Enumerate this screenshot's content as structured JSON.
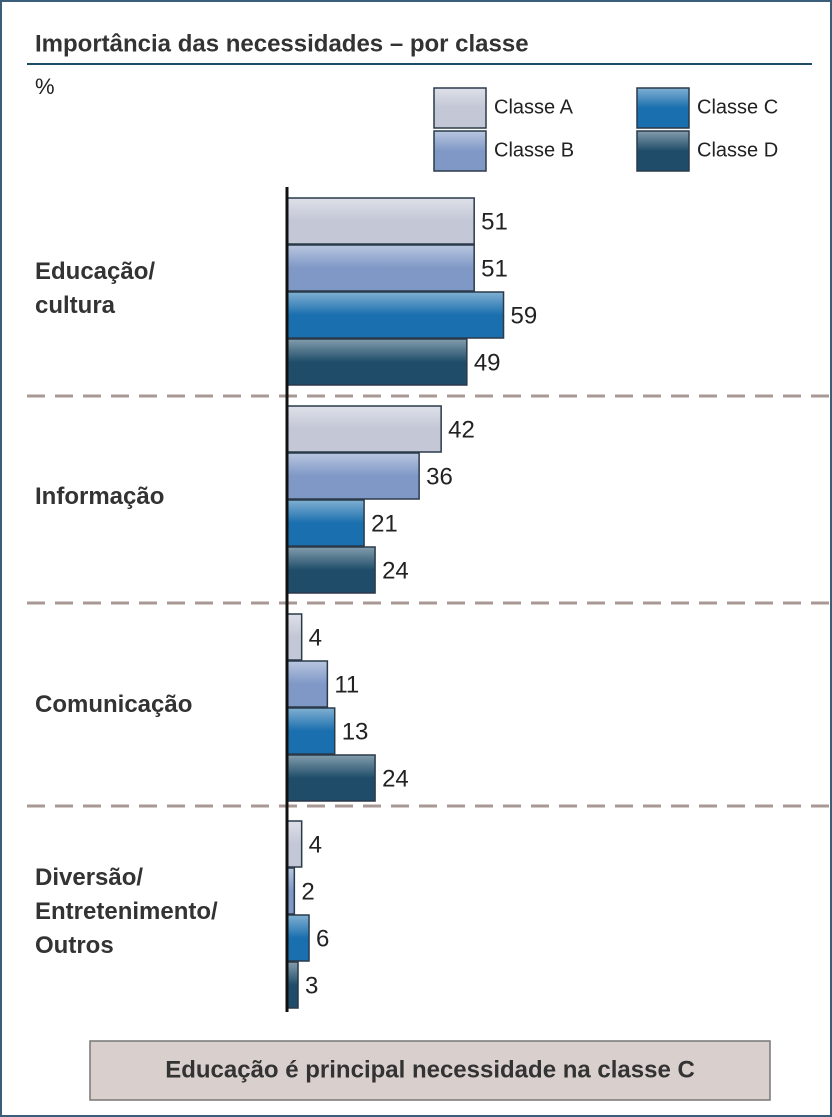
{
  "chart_data": {
    "type": "bar",
    "orientation": "horizontal",
    "title": "Importância das necessidades – por classe",
    "unit_label": "%",
    "categories": [
      "Educação/\ncultura",
      "Informação",
      "Comunicação",
      "Diversão/\nEntretenimento/\nOutros"
    ],
    "series": [
      {
        "name": "Classe A",
        "color": "#c3c7d6",
        "values": [
          51,
          42,
          4,
          4
        ]
      },
      {
        "name": "Classe B",
        "color": "#7f98c6",
        "values": [
          51,
          36,
          11,
          2
        ]
      },
      {
        "name": "Classe C",
        "color": "#1a6fae",
        "values": [
          59,
          21,
          13,
          6
        ]
      },
      {
        "name": "Classe D",
        "color": "#1f4d69",
        "values": [
          49,
          24,
          24,
          3
        ]
      }
    ],
    "xlim": [
      0,
      100
    ],
    "legend": "top-right",
    "note": "Educação é principal necessidade na classe C"
  }
}
